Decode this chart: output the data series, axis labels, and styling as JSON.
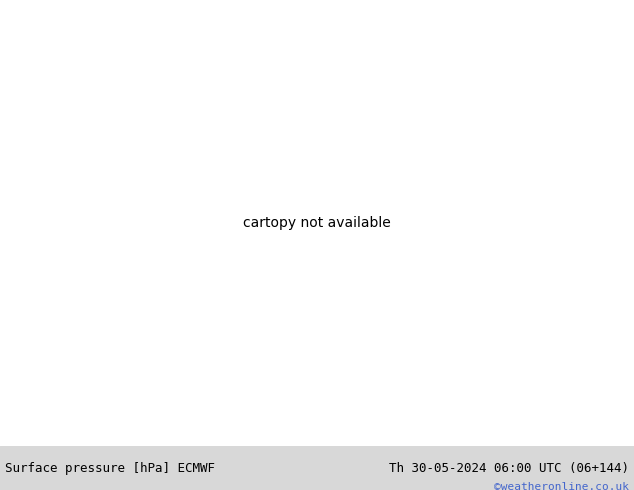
{
  "title_left": "Surface pressure [hPa] ECMWF",
  "title_right": "Th 30-05-2024 06:00 UTC (06+144)",
  "credit": "©weatheronline.co.uk",
  "credit_color": "#4466cc",
  "bg_color": "#f0f0f0",
  "ocean_color": "#e8e8e8",
  "land_color": "#b8e8a0",
  "mountain_color": "#aaaaaa",
  "bottom_bar_color": "#d8d8d8",
  "bottom_text_color": "#000000",
  "figsize": [
    6.34,
    4.9
  ],
  "dpi": 100,
  "map_extent": [
    -30,
    45,
    30,
    72
  ],
  "contour_black": "#000000",
  "contour_blue": "#0000cc",
  "contour_red": "#cc0000"
}
